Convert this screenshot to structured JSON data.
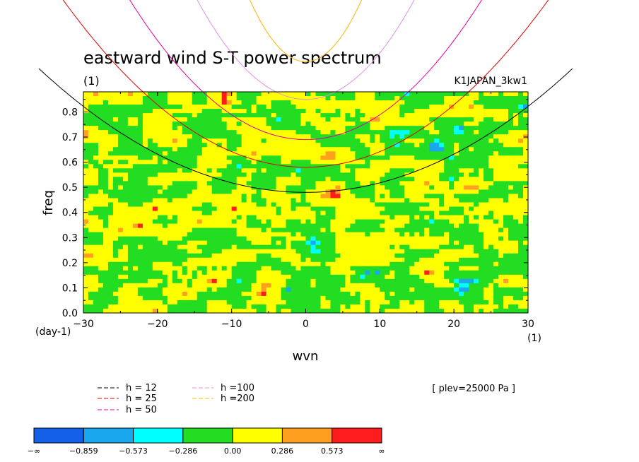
{
  "chart_data": {
    "type": "heatmap",
    "title": "eastward wind S-T power spectrum",
    "subtitle_left": "(1)",
    "subtitle_right": "K1JAPAN_3kw1",
    "xlabel": "wvn",
    "ylabel": "freq",
    "x_unit_label": "(1)",
    "y_unit_label": "(day-1)",
    "xlim": [
      -30,
      30
    ],
    "ylim": [
      0,
      0.88
    ],
    "x_ticks": [
      "-30",
      "-20",
      "-10",
      "0",
      "10",
      "20",
      "30"
    ],
    "y_ticks": [
      "0.0",
      "0.1",
      "0.2",
      "0.3",
      "0.4",
      "0.5",
      "0.6",
      "0.7",
      "0.8"
    ],
    "grid": false,
    "annotation": "[ plev=25000 Pa ]",
    "colorbar": {
      "labels": [
        "-∞",
        "-0.859",
        "-0.573",
        "-0.286",
        "0.00",
        "0.286",
        "0.573",
        "∞"
      ],
      "colors": [
        "#1560e8",
        "#1aa7ee",
        "#00ffff",
        "#22dd22",
        "#ffff00",
        "#ffa020",
        "#ff1c1c"
      ]
    },
    "dispersion_curves": [
      {
        "name": "h = 12",
        "color": "#000000"
      },
      {
        "name": "h = 25",
        "color": "#e00000"
      },
      {
        "name": "h = 50",
        "color": "#e000a0"
      },
      {
        "name": "h =100",
        "color": "#e090e0"
      },
      {
        "name": "h =200",
        "color": "#ffb400"
      }
    ]
  }
}
